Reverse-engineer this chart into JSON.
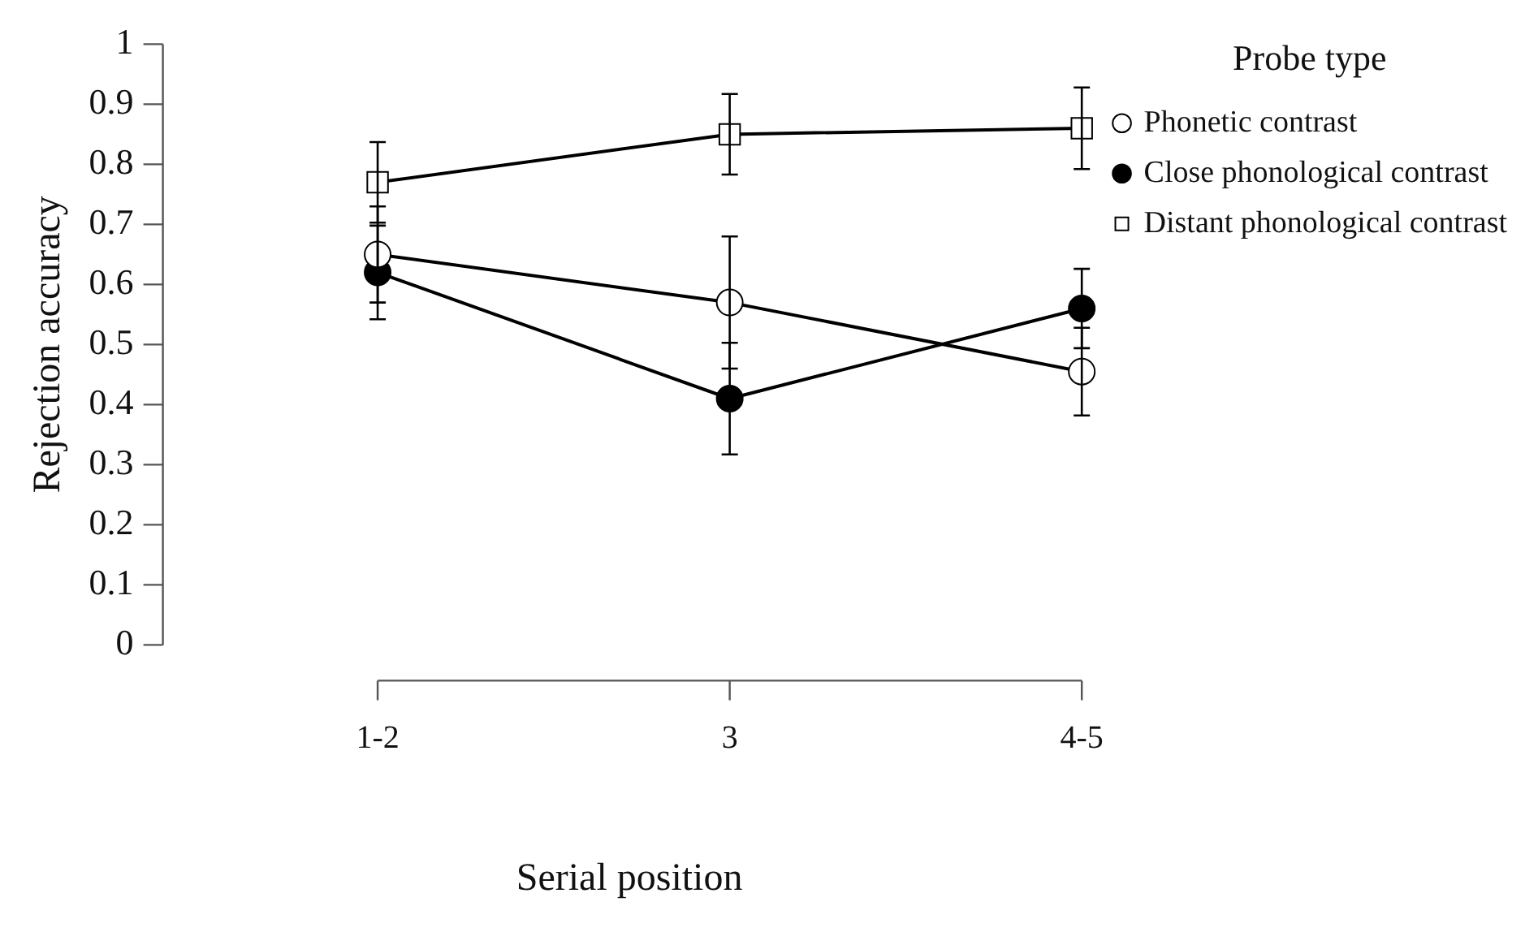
{
  "chart_data": {
    "type": "line",
    "xlabel": "Serial position",
    "ylabel": "Rejection accuracy",
    "legend_title": "Probe type",
    "categories": [
      "1-2",
      "3",
      "4-5"
    ],
    "series": [
      {
        "name": "Phonetic contrast",
        "color": "#ffffff",
        "marker": "circle",
        "values": [
          0.65,
          0.57,
          0.455
        ],
        "errors": [
          0.08,
          0.11,
          0.073
        ]
      },
      {
        "name": "Close phonological contrast",
        "color": "#000000",
        "marker": "circle",
        "values": [
          0.62,
          0.41,
          0.56
        ],
        "errors": [
          0.078,
          0.093,
          0.066
        ]
      },
      {
        "name": "Distant phonological contrast",
        "color": "#ffffff",
        "marker": "square",
        "values": [
          0.77,
          0.85,
          0.86
        ],
        "errors": [
          0.067,
          0.067,
          0.068
        ]
      }
    ],
    "ylim": [
      0,
      1
    ],
    "yticks": [
      0,
      0.1,
      0.2,
      0.3,
      0.4,
      0.5,
      0.6,
      0.7,
      0.8,
      0.9,
      1
    ],
    "grid": false,
    "legend": "top right",
    "line_style": "solid"
  }
}
